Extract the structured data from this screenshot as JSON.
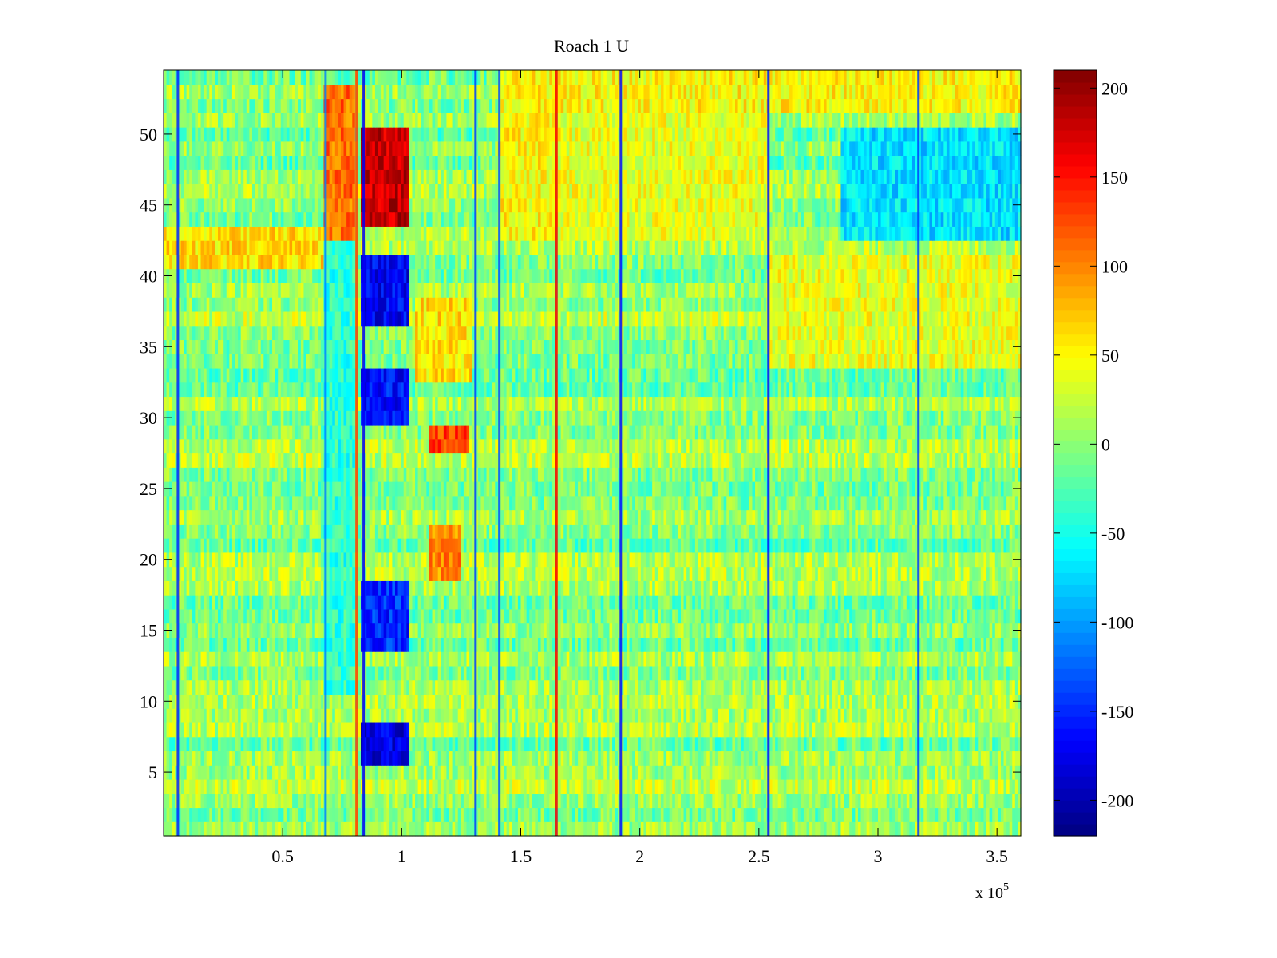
{
  "chart_data": {
    "type": "heatmap",
    "title": "Roach 1 U",
    "xlabel": "",
    "ylabel": "",
    "xlim": [
      0,
      360000
    ],
    "ylim": [
      0.5,
      54.5
    ],
    "x_ticks": [
      50000,
      100000,
      150000,
      200000,
      250000,
      300000,
      350000
    ],
    "x_tick_labels": [
      "0.5",
      "1",
      "1.5",
      "2",
      "2.5",
      "3",
      "3.5"
    ],
    "x_exponent_label": "x 10",
    "x_exponent_power": "5",
    "y_ticks": [
      5,
      10,
      15,
      20,
      25,
      30,
      35,
      40,
      45,
      50
    ],
    "y_tick_labels": [
      "5",
      "10",
      "15",
      "20",
      "25",
      "30",
      "35",
      "40",
      "45",
      "50"
    ],
    "rows": 54,
    "colormap": "jet",
    "clim": [
      -220,
      210
    ],
    "colorbar_ticks": [
      200,
      150,
      100,
      50,
      0,
      -50,
      -100,
      -150,
      -200
    ],
    "colorbar_tick_labels": [
      "200",
      "150",
      "100",
      "50",
      "0",
      "-50",
      "-100",
      "-150",
      "-200"
    ],
    "background_level": 0,
    "vertical_lines": [
      {
        "x": 6000,
        "value": -150
      },
      {
        "x": 68000,
        "value": -110
      },
      {
        "x": 81000,
        "value": 130
      },
      {
        "x": 84000,
        "value": -170
      },
      {
        "x": 131000,
        "value": -140
      },
      {
        "x": 141000,
        "value": -130
      },
      {
        "x": 165000,
        "value": 160
      },
      {
        "x": 192000,
        "value": -160
      },
      {
        "x": 254000,
        "value": -160
      },
      {
        "x": 317000,
        "value": -140
      }
    ],
    "regions": [
      {
        "x": [
          83000,
          103000
        ],
        "rows": [
          44,
          50
        ],
        "value": 180
      },
      {
        "x": [
          83000,
          103000
        ],
        "rows": [
          37,
          41
        ],
        "value": -170
      },
      {
        "x": [
          83000,
          103000
        ],
        "rows": [
          30,
          33
        ],
        "value": -160
      },
      {
        "x": [
          83000,
          103000
        ],
        "rows": [
          14,
          18
        ],
        "value": -150
      },
      {
        "x": [
          83000,
          103000
        ],
        "rows": [
          6,
          8
        ],
        "value": -180
      },
      {
        "x": [
          67000,
          80000
        ],
        "rows": [
          43,
          53
        ],
        "value": 110
      },
      {
        "x": [
          67000,
          80000
        ],
        "rows": [
          11,
          42
        ],
        "value": -40
      },
      {
        "x": [
          112000,
          128000
        ],
        "rows": [
          28,
          29
        ],
        "value": 130
      },
      {
        "x": [
          112000,
          125000
        ],
        "rows": [
          19,
          22
        ],
        "value": 100
      },
      {
        "x": [
          106000,
          130000
        ],
        "rows": [
          33,
          38
        ],
        "value": 60
      },
      {
        "x": [
          0,
          67000
        ],
        "rows": [
          41,
          43
        ],
        "value": 60
      },
      {
        "x": [
          140000,
          165000
        ],
        "rows": [
          43,
          54
        ],
        "value": 50
      },
      {
        "x": [
          165000,
          254000
        ],
        "rows": [
          43,
          54
        ],
        "value": 40
      },
      {
        "x": [
          285000,
          360000
        ],
        "rows": [
          43,
          50
        ],
        "value": -70
      },
      {
        "x": [
          255000,
          360000
        ],
        "rows": [
          34,
          41
        ],
        "value": 40
      },
      {
        "x": [
          140000,
          360000
        ],
        "rows": [
          52,
          54
        ],
        "value": 50
      }
    ]
  }
}
